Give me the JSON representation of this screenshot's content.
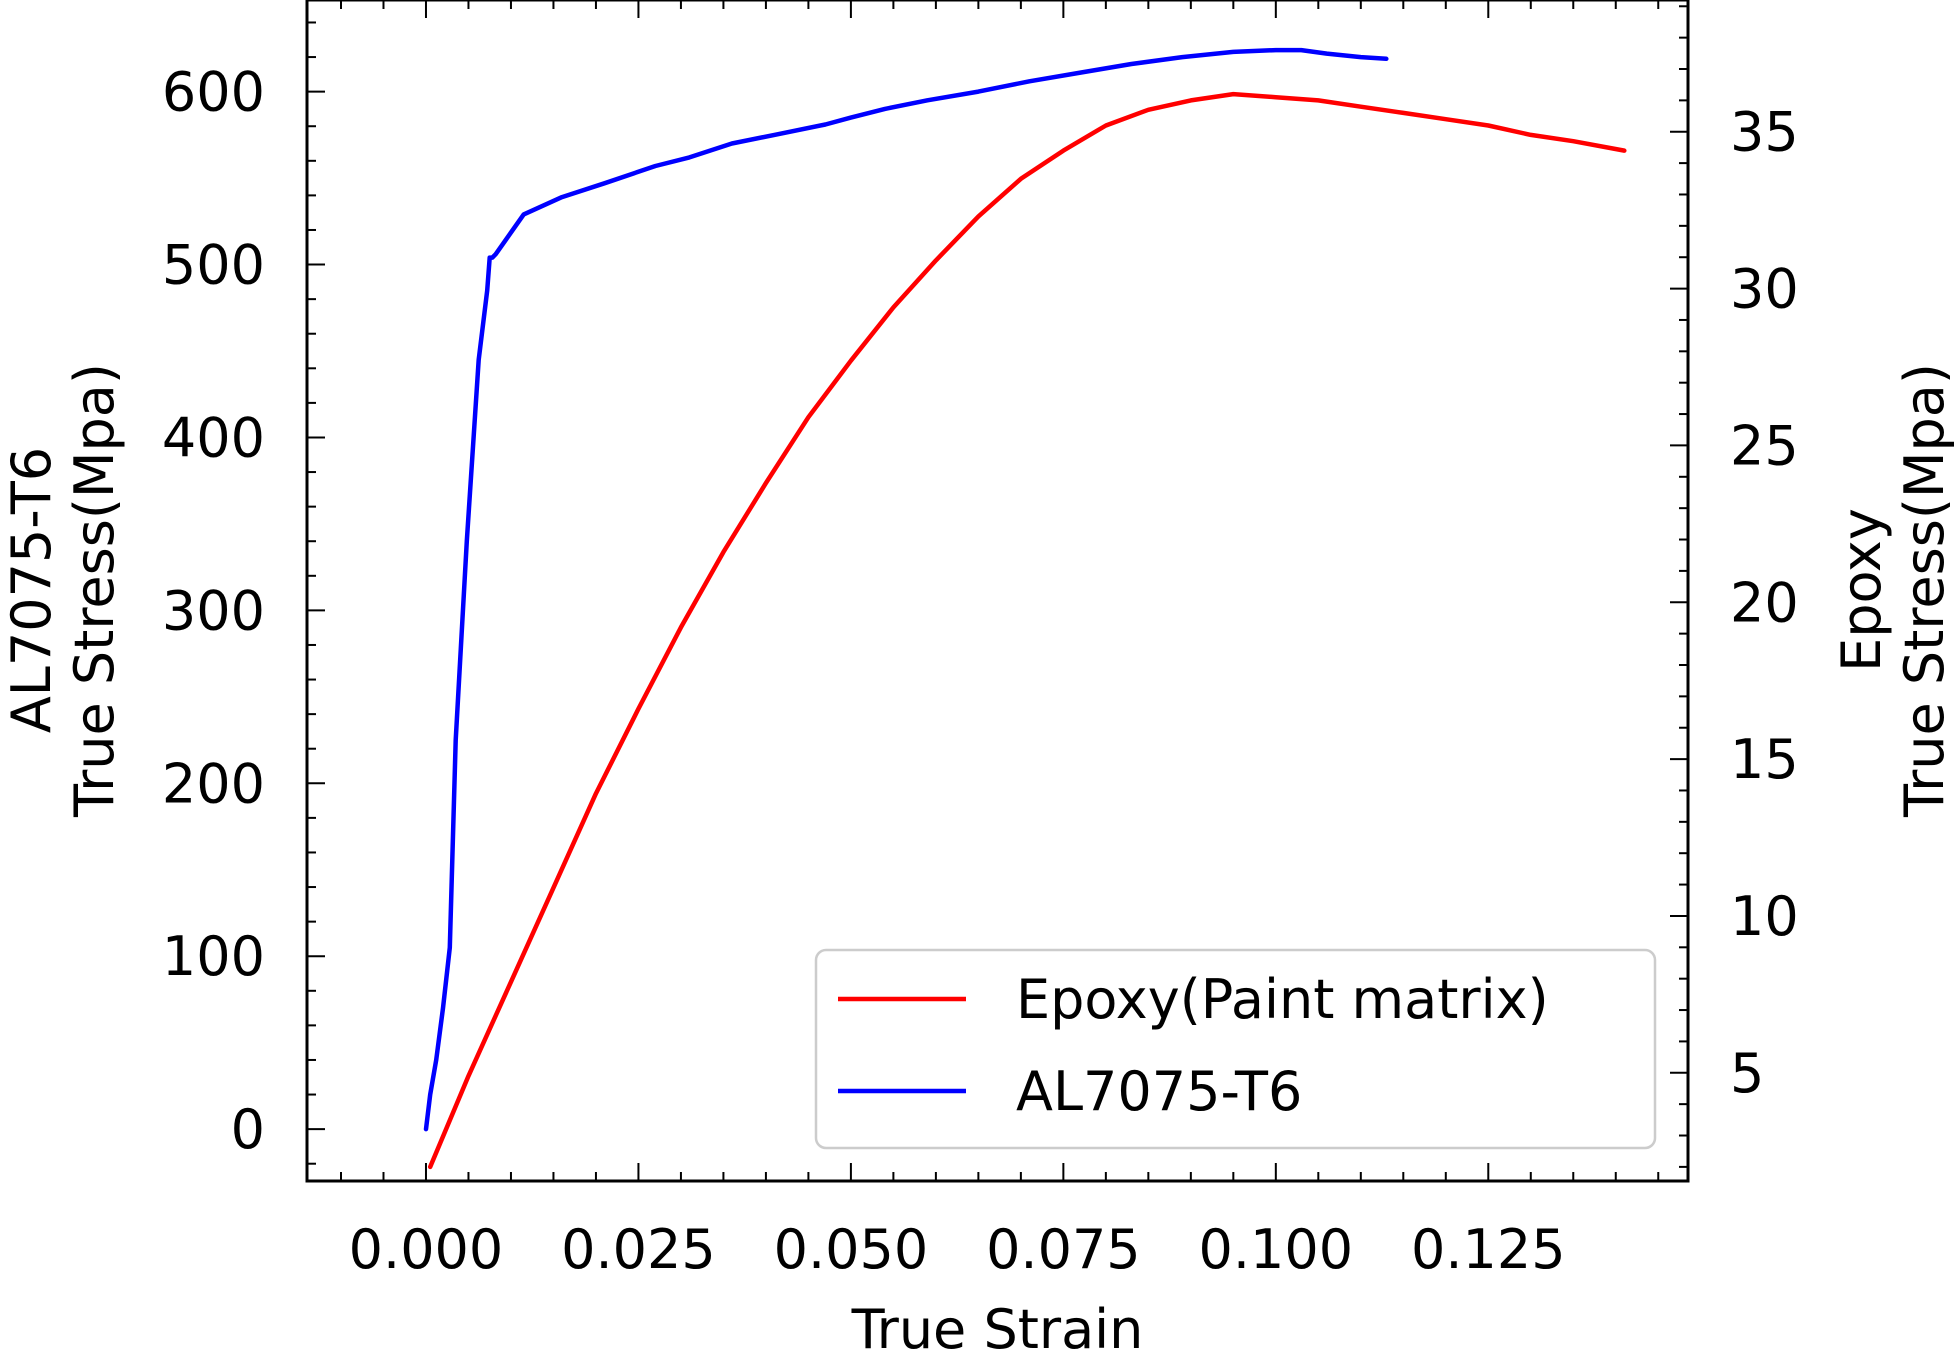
{
  "chart_data": {
    "type": "line",
    "x_axis": {
      "label": "True Strain",
      "lim": [
        -0.014,
        0.1485
      ],
      "ticks": [
        0.0,
        0.025,
        0.05,
        0.075,
        0.1,
        0.125
      ],
      "tick_labels": [
        "0.000",
        "0.025",
        "0.050",
        "0.075",
        "0.100",
        "0.125"
      ],
      "minor_step": 0.005
    },
    "y_left": {
      "label_lines": [
        "AL7075-T6",
        "True Stress(Mpa)"
      ],
      "lim": [
        -30,
        653
      ],
      "ticks": [
        0,
        100,
        200,
        300,
        400,
        500,
        600
      ],
      "tick_labels": [
        "0",
        "100",
        "200",
        "300",
        "400",
        "500",
        "600"
      ],
      "minor_step": 20
    },
    "y_right": {
      "label_lines": [
        "Epoxy",
        "True Stress(Mpa)"
      ],
      "lim": [
        1.55,
        39.2
      ],
      "ticks": [
        5,
        10,
        15,
        20,
        25,
        30,
        35
      ],
      "tick_labels": [
        "5",
        "10",
        "15",
        "20",
        "25",
        "30",
        "35"
      ],
      "minor_step": 1
    },
    "grid": false,
    "legend": {
      "placement": "lower-right"
    },
    "series": [
      {
        "name": "Epoxy(Paint matrix)",
        "axis": "right",
        "color": "#ff0000",
        "x": [
          0.0005,
          0.005,
          0.01,
          0.015,
          0.02,
          0.025,
          0.03,
          0.035,
          0.04,
          0.045,
          0.05,
          0.055,
          0.06,
          0.065,
          0.07,
          0.075,
          0.08,
          0.085,
          0.09,
          0.095,
          0.1,
          0.105,
          0.11,
          0.115,
          0.12,
          0.125,
          0.13,
          0.135,
          0.141
        ],
        "y": [
          2.0,
          4.9,
          7.9,
          10.9,
          13.9,
          16.6,
          19.2,
          21.6,
          23.8,
          25.9,
          27.7,
          29.4,
          30.9,
          32.3,
          33.5,
          34.4,
          35.2,
          35.7,
          36.0,
          36.2,
          36.1,
          36.0,
          35.8,
          35.6,
          35.4,
          35.2,
          34.9,
          34.7,
          34.4
        ]
      },
      {
        "name": "AL7075-T6",
        "axis": "left",
        "color": "#0000ff",
        "x": [
          0.0,
          0.0005,
          0.0012,
          0.002,
          0.0028,
          0.0035,
          0.0048,
          0.0062,
          0.0072,
          0.0075,
          0.0078,
          0.0082,
          0.0115,
          0.016,
          0.021,
          0.027,
          0.031,
          0.036,
          0.041,
          0.047,
          0.05,
          0.054,
          0.059,
          0.065,
          0.071,
          0.077,
          0.083,
          0.089,
          0.095,
          0.1,
          0.103,
          0.106,
          0.11,
          0.113
        ],
        "y": [
          0,
          20,
          40,
          70,
          105,
          225,
          340,
          445,
          485,
          504,
          504,
          506,
          529,
          539,
          547,
          557,
          562,
          570,
          575,
          581,
          585,
          590,
          595,
          600,
          606,
          611,
          616,
          620,
          623,
          624,
          624,
          622,
          620,
          619
        ]
      }
    ]
  }
}
